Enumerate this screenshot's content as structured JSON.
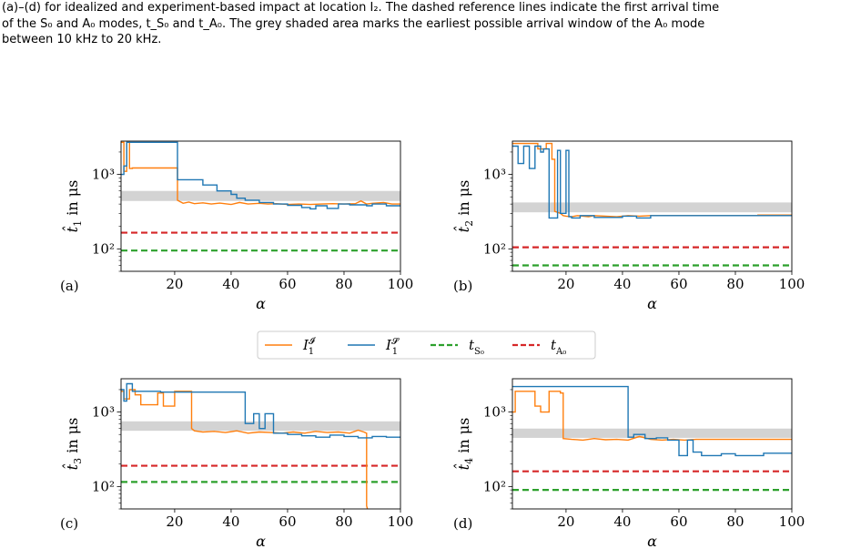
{
  "caption": {
    "line1": "(a)–(d) for idealized and experiment-based impact at location I₂. The dashed reference lines indicate the first arrival time",
    "line2": "of the S₀ and A₀ modes, t_S₀ and t_A₀. The grey shaded area marks the earliest possible arrival window of the A₀ mode",
    "line3": "between 10 kHz to 20 kHz."
  },
  "legend": {
    "items": [
      {
        "label": "I₁^𝓘",
        "main": "I",
        "sub": "1",
        "sup": "𝓘",
        "color": "#ff7f0e",
        "style": "solid"
      },
      {
        "label": "I₁^𝓢",
        "main": "I",
        "sub": "1",
        "sup": "𝓢",
        "color": "#1f77b4",
        "style": "solid"
      },
      {
        "label": "t_S₀",
        "main": "t",
        "sub": "S₀",
        "sup": "",
        "color": "#2ca02c",
        "style": "dashed"
      },
      {
        "label": "t_A₀",
        "main": "t",
        "sub": "A₀",
        "sup": "",
        "color": "#d62728",
        "style": "dashed"
      }
    ]
  },
  "colors": {
    "orange": "#ff7f0e",
    "blue": "#1f77b4",
    "green": "#2ca02c",
    "red": "#d62728",
    "shade": "#d3d3d3"
  },
  "chart_data": [
    {
      "panel_label": "(a)",
      "type": "line",
      "yscale": "log",
      "xlabel": "α",
      "ylabel_main": "t̂",
      "ylabel_sub": "1",
      "ylabel_unit": "in μs",
      "xlim": [
        1,
        100
      ],
      "ylim": [
        50,
        2800
      ],
      "xticks": [
        20,
        40,
        60,
        80,
        100
      ],
      "yticks": [
        100,
        1000
      ],
      "ytick_labels": [
        "10²",
        "10³"
      ],
      "shade": [
        440,
        600
      ],
      "t_S0": 95,
      "t_A0": 165,
      "series": [
        {
          "name": "I₁^𝓘",
          "color": "#ff7f0e",
          "x": [
            1,
            2,
            2,
            3,
            3,
            4,
            4,
            5,
            5,
            21,
            21,
            22,
            23,
            25,
            27,
            30,
            33,
            36,
            40,
            43,
            46,
            50,
            53,
            56,
            60,
            64,
            68,
            72,
            76,
            80,
            84,
            86,
            88,
            90,
            94,
            97,
            100
          ],
          "y": [
            2700,
            2700,
            1100,
            1100,
            2700,
            2700,
            1200,
            1200,
            1220,
            1220,
            450,
            430,
            410,
            425,
            405,
            415,
            400,
            412,
            395,
            420,
            400,
            410,
            400,
            405,
            395,
            400,
            395,
            400,
            405,
            400,
            405,
            440,
            400,
            410,
            420,
            400,
            400
          ]
        },
        {
          "name": "I₁^𝓢",
          "color": "#1f77b4",
          "x": [
            1,
            2,
            2,
            3,
            3,
            5,
            5,
            20,
            20,
            21,
            21,
            30,
            30,
            35,
            35,
            40,
            40,
            42,
            42,
            45,
            45,
            50,
            50,
            55,
            55,
            60,
            60,
            65,
            65,
            68,
            68,
            70,
            70,
            74,
            74,
            78,
            78,
            82,
            82,
            88,
            88,
            90,
            90,
            95,
            95,
            100
          ],
          "y": [
            1000,
            1000,
            1300,
            1300,
            2700,
            2700,
            2700,
            2700,
            2700,
            2700,
            850,
            850,
            720,
            720,
            600,
            600,
            540,
            540,
            480,
            480,
            450,
            450,
            420,
            420,
            400,
            400,
            385,
            385,
            360,
            360,
            345,
            345,
            380,
            380,
            350,
            350,
            400,
            400,
            390,
            390,
            380,
            380,
            400,
            400,
            380,
            380
          ]
        }
      ]
    },
    {
      "panel_label": "(b)",
      "type": "line",
      "yscale": "log",
      "xlabel": "α",
      "ylabel_main": "t̂",
      "ylabel_sub": "2",
      "ylabel_unit": "in μs",
      "xlim": [
        1,
        100
      ],
      "ylim": [
        50,
        2800
      ],
      "xticks": [
        20,
        40,
        60,
        80,
        100
      ],
      "yticks": [
        100,
        1000
      ],
      "ytick_labels": [
        "10²",
        "10³"
      ],
      "shade": [
        310,
        420
      ],
      "t_S0": 60,
      "t_A0": 105,
      "series": [
        {
          "name": "I₁^𝓘",
          "color": "#ff7f0e",
          "x": [
            1,
            10,
            10,
            13,
            13,
            15,
            15,
            16,
            16,
            18,
            19,
            20,
            22,
            24,
            26,
            28,
            30,
            34,
            38,
            42,
            46,
            50,
            88,
            88,
            100
          ],
          "y": [
            2600,
            2600,
            2200,
            2200,
            2600,
            2600,
            1600,
            1600,
            320,
            300,
            280,
            275,
            270,
            280,
            275,
            270,
            280,
            275,
            270,
            280,
            275,
            280,
            280,
            285,
            285
          ],
          "comment": ""
        },
        {
          "name": "I₁^𝓢",
          "color": "#1f77b4",
          "x": [
            1,
            3,
            3,
            5,
            5,
            7,
            7,
            9,
            9,
            11,
            11,
            12,
            12,
            14,
            14,
            17,
            17,
            18,
            18,
            20,
            20,
            21,
            21,
            22,
            22,
            25,
            25,
            30,
            30,
            40,
            40,
            45,
            45,
            50,
            50,
            100
          ],
          "y": [
            2400,
            2400,
            1400,
            1400,
            2400,
            2400,
            1200,
            1200,
            2400,
            2400,
            2000,
            2000,
            2200,
            2200,
            260,
            260,
            2100,
            2100,
            300,
            300,
            2100,
            2100,
            270,
            270,
            260,
            260,
            280,
            280,
            265,
            265,
            275,
            275,
            260,
            260,
            280,
            280
          ]
        }
      ]
    },
    {
      "panel_label": "(c)",
      "type": "line",
      "yscale": "log",
      "xlabel": "α",
      "ylabel_main": "t̂",
      "ylabel_sub": "3",
      "ylabel_unit": "in μs",
      "xlim": [
        1,
        100
      ],
      "ylim": [
        50,
        2800
      ],
      "xticks": [
        20,
        40,
        60,
        80,
        100
      ],
      "yticks": [
        100,
        1000
      ],
      "ytick_labels": [
        "10²",
        "10³"
      ],
      "shade": [
        560,
        750
      ],
      "t_S0": 115,
      "t_A0": 190,
      "series": [
        {
          "name": "I₁^𝓘",
          "color": "#ff7f0e",
          "x": [
            1,
            2,
            2,
            4,
            4,
            6,
            6,
            8,
            8,
            14,
            14,
            16,
            16,
            20,
            20,
            26,
            26,
            27,
            30,
            34,
            38,
            42,
            46,
            50,
            54,
            58,
            62,
            66,
            70,
            74,
            78,
            82,
            85,
            87,
            88,
            88,
            89
          ],
          "y": [
            1900,
            1900,
            1500,
            1500,
            2000,
            2000,
            1700,
            1700,
            1250,
            1250,
            1800,
            1800,
            1200,
            1200,
            1900,
            1900,
            600,
            560,
            540,
            550,
            530,
            560,
            520,
            540,
            530,
            520,
            540,
            520,
            550,
            530,
            540,
            520,
            570,
            540,
            520,
            55,
            40
          ]
        },
        {
          "name": "I₁^𝓢",
          "color": "#1f77b4",
          "x": [
            1,
            2,
            2,
            3,
            3,
            5,
            5,
            15,
            15,
            45,
            45,
            48,
            48,
            50,
            50,
            52,
            52,
            55,
            55,
            60,
            60,
            65,
            65,
            70,
            70,
            75,
            75,
            80,
            80,
            85,
            85,
            90,
            90,
            95,
            95,
            100
          ],
          "y": [
            2000,
            2000,
            1400,
            1400,
            2400,
            2400,
            1900,
            1900,
            1850,
            1850,
            700,
            700,
            950,
            950,
            600,
            600,
            950,
            950,
            520,
            520,
            500,
            500,
            480,
            480,
            460,
            460,
            490,
            490,
            470,
            470,
            450,
            450,
            470,
            470,
            460,
            460
          ]
        }
      ]
    },
    {
      "panel_label": "(d)",
      "type": "line",
      "yscale": "log",
      "xlabel": "α",
      "ylabel_main": "t̂",
      "ylabel_sub": "4",
      "ylabel_unit": "in μs",
      "xlim": [
        1,
        100
      ],
      "ylim": [
        50,
        2800
      ],
      "xticks": [
        20,
        40,
        60,
        80,
        100
      ],
      "yticks": [
        100,
        1000
      ],
      "ytick_labels": [
        "10²",
        "10³"
      ],
      "shade": [
        450,
        600
      ],
      "t_S0": 90,
      "t_A0": 160,
      "series": [
        {
          "name": "I₁^𝓘",
          "color": "#ff7f0e",
          "x": [
            1,
            2,
            2,
            9,
            9,
            11,
            11,
            14,
            14,
            18,
            18,
            19,
            19,
            22,
            26,
            30,
            34,
            38,
            42,
            46,
            50,
            54,
            58,
            62,
            66,
            70,
            74,
            78,
            82,
            86,
            90,
            94,
            100
          ],
          "y": [
            1000,
            1000,
            1900,
            1900,
            1200,
            1200,
            1000,
            1000,
            1900,
            1900,
            1800,
            1800,
            440,
            430,
            420,
            440,
            425,
            430,
            420,
            470,
            430,
            420,
            430,
            420,
            430,
            430,
            430,
            430,
            430,
            430,
            430,
            430,
            430
          ]
        },
        {
          "name": "I₁^𝓢",
          "color": "#1f77b4",
          "x": [
            1,
            2,
            2,
            42,
            42,
            44,
            44,
            48,
            48,
            52,
            52,
            56,
            56,
            60,
            60,
            63,
            63,
            65,
            65,
            68,
            68,
            75,
            75,
            80,
            80,
            90,
            90,
            95,
            95,
            100
          ],
          "y": [
            2200,
            2200,
            2200,
            2200,
            460,
            460,
            500,
            500,
            440,
            440,
            450,
            450,
            420,
            420,
            260,
            260,
            420,
            420,
            290,
            290,
            260,
            260,
            275,
            275,
            260,
            260,
            280,
            280,
            280,
            280
          ]
        }
      ]
    }
  ]
}
